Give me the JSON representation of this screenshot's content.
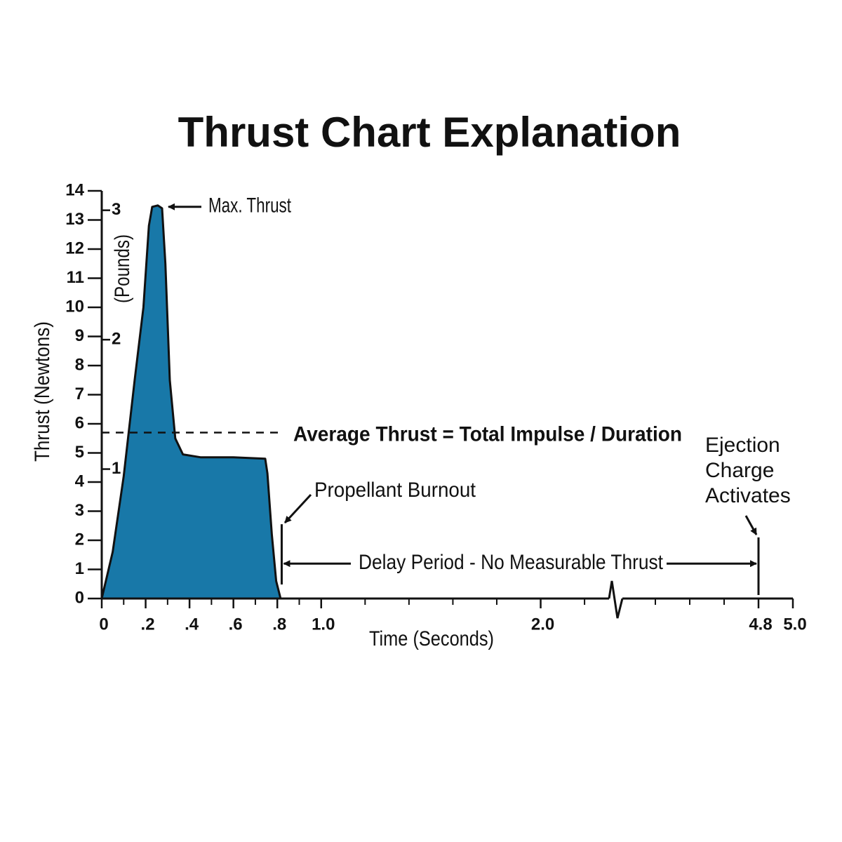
{
  "chart_data": {
    "type": "area",
    "title": "Thrust Chart Explanation",
    "xlabel": "Time (Seconds)",
    "ylabel": "Thrust (Newtons)",
    "y2label": "(Pounds)",
    "xlim": [
      0,
      5
    ],
    "x_break": [
      2.35,
      4.0
    ],
    "xticks": [
      0,
      {
        "value": 0.2,
        "label": ".2"
      },
      {
        "value": 0.4,
        "label": ".4"
      },
      {
        "value": 0.6,
        "label": ".6"
      },
      {
        "value": 0.8,
        "label": ".8"
      },
      {
        "value": 1,
        "label": "1.0"
      },
      {
        "value": 2,
        "label": "2.0"
      },
      4.8,
      {
        "value": 5,
        "label": "5.0"
      }
    ],
    "xminor_ticks": [
      0.1,
      0.3,
      0.5,
      0.7,
      0.9,
      1.2,
      1.4,
      1.6,
      1.8,
      2.2,
      4.2,
      4.4,
      4.6
    ],
    "ylim": [
      0,
      14
    ],
    "yticks": [
      0,
      1,
      2,
      3,
      4,
      5,
      6,
      7,
      8,
      9,
      10,
      11,
      12,
      13,
      14
    ],
    "y2lim": [
      0,
      3.15
    ],
    "y2ticks": [
      1,
      2,
      3
    ],
    "series": [
      {
        "color": "#1878a8",
        "x": [
          0,
          0.05,
          0.1,
          0.15,
          0.19,
          0.215,
          0.23,
          0.255,
          0.275,
          0.29,
          0.31,
          0.335,
          0.37,
          0.45,
          0.6,
          0.745,
          0.755,
          0.775,
          0.795,
          0.815
        ],
        "values": [
          0,
          1.6,
          4.2,
          7.5,
          10,
          12.8,
          13.45,
          13.5,
          13.4,
          11.5,
          7.5,
          5.5,
          4.95,
          4.85,
          4.85,
          4.8,
          4.3,
          2.2,
          0.6,
          0
        ]
      }
    ],
    "annotations": {
      "max_thrust": {
        "text": "Max. Thrust",
        "value": 13.5
      },
      "average": {
        "text": "Average Thrust = Total Impulse / Duration",
        "value": 5.7
      },
      "burnout": {
        "text": "Propellant Burnout",
        "x": 0.82
      },
      "delay": {
        "text": "Delay Period - No Measurable Thrust"
      },
      "ejection": {
        "lines": [
          "Ejection",
          "Charge",
          "Activates"
        ],
        "x": 4.8
      }
    }
  }
}
